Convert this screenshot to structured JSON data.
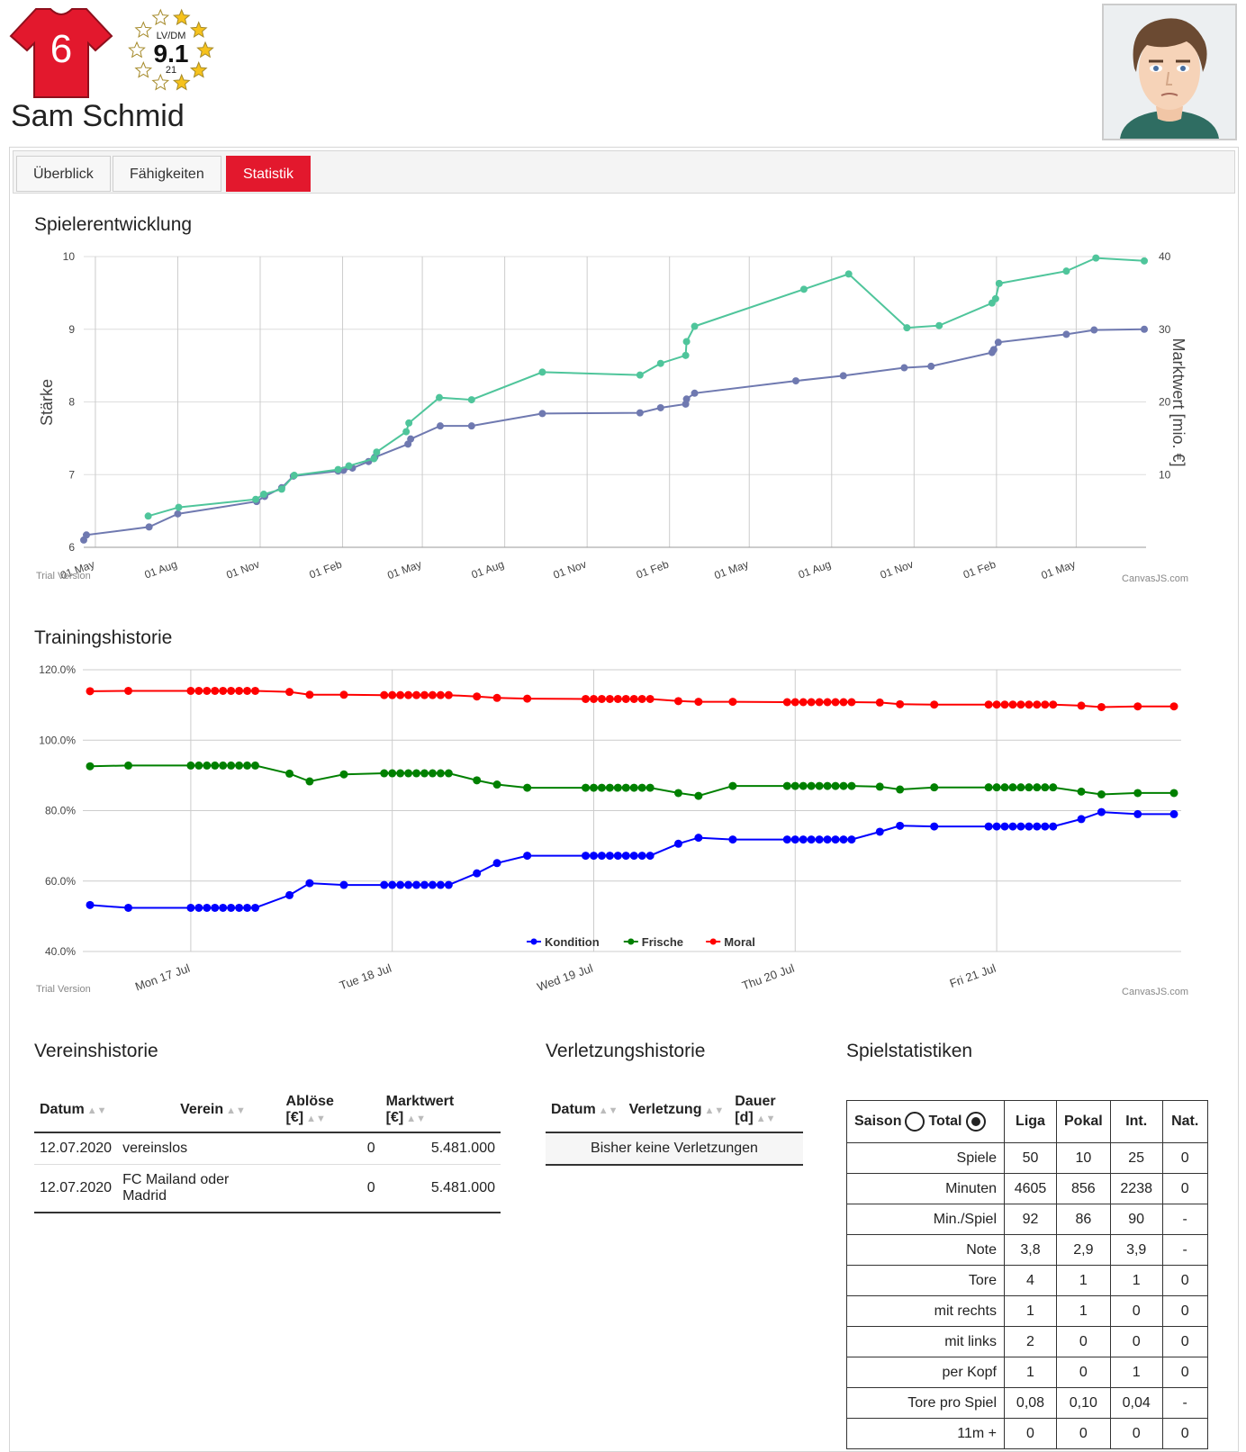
{
  "player": {
    "number": "6",
    "position": "LV/DM",
    "rating": "9.1",
    "age": "21",
    "stars_filled": 5,
    "stars_total": 10,
    "name": "Sam Schmid",
    "jersey_color": "#e3182d"
  },
  "tabs": [
    {
      "label": "Überblick",
      "active": false
    },
    {
      "label": "Fähigkeiten",
      "active": false
    },
    {
      "label": "Statistik",
      "active": true
    }
  ],
  "charts": {
    "development_title": "Spielerentwicklung",
    "training_title": "Trainingshistorie",
    "trial_label": "Trial Version",
    "credit_label": "CanvasJS.com"
  },
  "chart_data": [
    {
      "type": "line",
      "title": "Spielerentwicklung",
      "ylabel": "Stärke",
      "y2label": "Marktwert [mio. €]",
      "ylim": [
        6,
        10
      ],
      "y_ticks": [
        "6",
        "7",
        "8",
        "9",
        "10"
      ],
      "y2lim": [
        0,
        40
      ],
      "y2_ticks": [
        "10",
        "20",
        "30",
        "40"
      ],
      "xlim": [
        "2020-04-18",
        "2023-07-18"
      ],
      "x_ticks": [
        {
          "date": "2020-05-01",
          "label": "01 May"
        },
        {
          "date": "2020-08-01",
          "label": "01 Aug"
        },
        {
          "date": "2020-11-01",
          "label": "01 Nov"
        },
        {
          "date": "2021-02-01",
          "label": "01 Feb"
        },
        {
          "date": "2021-05-01",
          "label": "01 May"
        },
        {
          "date": "2021-08-01",
          "label": "01 Aug"
        },
        {
          "date": "2021-11-01",
          "label": "01 Nov"
        },
        {
          "date": "2022-02-01",
          "label": "01 Feb"
        },
        {
          "date": "2022-05-01",
          "label": "01 May"
        },
        {
          "date": "2022-08-01",
          "label": "01 Aug"
        },
        {
          "date": "2022-11-01",
          "label": "01 Nov"
        },
        {
          "date": "2023-02-01",
          "label": "01 Feb"
        },
        {
          "date": "2023-05-01",
          "label": "01 May"
        }
      ],
      "grid": true,
      "series": [
        {
          "axis": "left",
          "color": "#6f79b0",
          "points": [
            [
              "2020-04-18",
              6.1
            ],
            [
              "2020-04-21",
              6.17
            ],
            [
              "2020-06-30",
              6.28
            ],
            [
              "2020-08-01",
              6.46
            ],
            [
              "2020-10-28",
              6.63
            ],
            [
              "2020-11-06",
              6.7
            ],
            [
              "2020-11-25",
              6.82
            ],
            [
              "2020-12-08",
              6.98
            ],
            [
              "2021-01-27",
              7.05
            ],
            [
              "2021-02-02",
              7.06
            ],
            [
              "2021-02-12",
              7.09
            ],
            [
              "2021-03-02",
              7.18
            ],
            [
              "2021-03-09",
              7.24
            ],
            [
              "2021-04-15",
              7.42
            ],
            [
              "2021-04-18",
              7.49
            ],
            [
              "2021-05-21",
              7.67
            ],
            [
              "2021-06-25",
              7.67
            ],
            [
              "2021-09-12",
              7.84
            ],
            [
              "2021-12-30",
              7.85
            ],
            [
              "2022-01-22",
              7.92
            ],
            [
              "2022-02-19",
              7.97
            ],
            [
              "2022-02-20",
              8.04
            ],
            [
              "2022-03-01",
              8.12
            ],
            [
              "2022-06-22",
              8.29
            ],
            [
              "2022-08-14",
              8.36
            ],
            [
              "2022-10-21",
              8.47
            ],
            [
              "2022-11-20",
              8.49
            ],
            [
              "2023-01-27",
              8.68
            ],
            [
              "2023-01-29",
              8.72
            ],
            [
              "2023-02-03",
              8.82
            ],
            [
              "2023-04-20",
              8.93
            ],
            [
              "2023-05-21",
              8.99
            ],
            [
              "2023-07-16",
              9.0
            ]
          ]
        },
        {
          "axis": "right",
          "color": "#4fc59b",
          "points": [
            [
              "2020-06-29",
              4.3
            ],
            [
              "2020-08-02",
              5.5
            ],
            [
              "2020-10-27",
              6.6
            ],
            [
              "2020-11-05",
              7.3
            ],
            [
              "2020-11-25",
              8.0
            ],
            [
              "2020-12-09",
              9.9
            ],
            [
              "2021-01-27",
              10.7
            ],
            [
              "2021-02-08",
              11.2
            ],
            [
              "2021-03-08",
              12.2
            ],
            [
              "2021-03-11",
              13.1
            ],
            [
              "2021-04-13",
              15.9
            ],
            [
              "2021-04-16",
              17.1
            ],
            [
              "2021-05-20",
              20.6
            ],
            [
              "2021-06-25",
              20.3
            ],
            [
              "2021-09-12",
              24.1
            ],
            [
              "2021-12-30",
              23.7
            ],
            [
              "2022-01-22",
              25.3
            ],
            [
              "2022-02-19",
              26.4
            ],
            [
              "2022-02-20",
              28.3
            ],
            [
              "2022-03-01",
              30.4
            ],
            [
              "2022-07-01",
              35.5
            ],
            [
              "2022-08-20",
              37.6
            ],
            [
              "2022-10-24",
              30.2
            ],
            [
              "2022-11-29",
              30.5
            ],
            [
              "2023-01-27",
              33.6
            ],
            [
              "2023-01-31",
              34.2
            ],
            [
              "2023-02-04",
              36.3
            ],
            [
              "2023-04-20",
              38.0
            ],
            [
              "2023-05-23",
              39.8
            ],
            [
              "2023-07-16",
              39.4
            ]
          ]
        }
      ]
    },
    {
      "type": "line",
      "title": "Trainingshistorie",
      "ylim": [
        40,
        120
      ],
      "y_ticks": [
        "40.0%",
        "60.0%",
        "80.0%",
        "100.0%",
        "120.0%"
      ],
      "xlim": [
        -0.5,
        4.88
      ],
      "x_ticks": [
        {
          "x": 0,
          "label": "Mon 17 Jul"
        },
        {
          "x": 1,
          "label": "Tue 18 Jul"
        },
        {
          "x": 2,
          "label": "Wed 19 Jul"
        },
        {
          "x": 3,
          "label": "Thu 20 Jul"
        },
        {
          "x": 4,
          "label": "Fri 21 Jul"
        }
      ],
      "grid": true,
      "legend": "bottom",
      "x": [
        -0.5,
        -0.31,
        0,
        0.04,
        0.08,
        0.12,
        0.16,
        0.2,
        0.24,
        0.28,
        0.32,
        0.49,
        0.59,
        0.76,
        0.96,
        1.0,
        1.04,
        1.08,
        1.12,
        1.16,
        1.2,
        1.24,
        1.28,
        1.42,
        1.52,
        1.67,
        1.96,
        2.0,
        2.04,
        2.08,
        2.12,
        2.16,
        2.2,
        2.24,
        2.28,
        2.42,
        2.52,
        2.69,
        2.96,
        3.0,
        3.04,
        3.08,
        3.12,
        3.16,
        3.2,
        3.24,
        3.28,
        3.42,
        3.52,
        3.69,
        3.96,
        4.0,
        4.04,
        4.08,
        4.12,
        4.16,
        4.2,
        4.24,
        4.28,
        4.42,
        4.52,
        4.7,
        4.88
      ],
      "series": [
        {
          "name": "Kondition",
          "color": "#0000ff",
          "values": [
            53.2,
            52.4,
            52.4,
            52.4,
            52.4,
            52.4,
            52.4,
            52.4,
            52.4,
            52.4,
            52.4,
            56.0,
            59.4,
            58.9,
            58.9,
            58.9,
            58.9,
            58.9,
            58.9,
            58.9,
            58.9,
            58.9,
            58.9,
            62.2,
            65.1,
            67.2,
            67.2,
            67.2,
            67.2,
            67.2,
            67.2,
            67.2,
            67.2,
            67.2,
            67.2,
            70.6,
            72.3,
            71.8,
            71.8,
            71.8,
            71.8,
            71.8,
            71.8,
            71.8,
            71.8,
            71.8,
            71.8,
            74.0,
            75.7,
            75.5,
            75.5,
            75.5,
            75.5,
            75.5,
            75.5,
            75.5,
            75.5,
            75.5,
            75.5,
            77.6,
            79.6,
            79.0,
            79.0
          ]
        },
        {
          "name": "Frische",
          "color": "#008000",
          "values": [
            92.6,
            92.8,
            92.8,
            92.8,
            92.8,
            92.8,
            92.8,
            92.8,
            92.8,
            92.8,
            92.8,
            90.5,
            88.3,
            90.3,
            90.6,
            90.6,
            90.6,
            90.6,
            90.6,
            90.6,
            90.6,
            90.6,
            90.6,
            88.6,
            87.4,
            86.5,
            86.5,
            86.5,
            86.5,
            86.5,
            86.5,
            86.5,
            86.5,
            86.5,
            86.5,
            85.0,
            84.2,
            87.0,
            87.0,
            87.0,
            87.0,
            87.0,
            87.0,
            87.0,
            87.0,
            87.0,
            87.0,
            86.8,
            86.0,
            86.6,
            86.6,
            86.6,
            86.6,
            86.6,
            86.6,
            86.6,
            86.6,
            86.6,
            86.6,
            85.4,
            84.6,
            85.0,
            85.0
          ]
        },
        {
          "name": "Moral",
          "color": "#ff0000",
          "values": [
            113.9,
            114.0,
            114.0,
            114.0,
            114.0,
            114.0,
            114.0,
            114.0,
            114.0,
            114.0,
            114.0,
            113.7,
            112.9,
            112.9,
            112.8,
            112.8,
            112.8,
            112.8,
            112.8,
            112.8,
            112.8,
            112.8,
            112.8,
            112.4,
            112.0,
            111.8,
            111.7,
            111.7,
            111.7,
            111.7,
            111.7,
            111.7,
            111.7,
            111.7,
            111.7,
            111.1,
            110.9,
            110.9,
            110.8,
            110.8,
            110.8,
            110.8,
            110.8,
            110.8,
            110.8,
            110.8,
            110.8,
            110.7,
            110.2,
            110.1,
            110.1,
            110.1,
            110.1,
            110.1,
            110.1,
            110.1,
            110.1,
            110.1,
            110.1,
            109.8,
            109.4,
            109.6,
            109.6
          ]
        }
      ]
    }
  ],
  "club_history": {
    "title": "Vereinshistorie",
    "columns": [
      "Datum",
      "Verein",
      "Ablöse [€]",
      "Marktwert [€]"
    ],
    "rows": [
      [
        "12.07.2020",
        "vereinslos",
        "0",
        "5.481.000"
      ],
      [
        "12.07.2020",
        "FC Mailand oder Madrid",
        "0",
        "5.481.000"
      ]
    ]
  },
  "injury_history": {
    "title": "Verletzungshistorie",
    "columns": [
      "Datum",
      "Verletzung",
      "Dauer [d]"
    ],
    "empty_text": "Bisher keine Verletzungen"
  },
  "game_stats": {
    "title": "Spielstatistiken",
    "saison_label": "Saison",
    "total_label": "Total",
    "selected": "Total",
    "columns": [
      "Liga",
      "Pokal",
      "Int.",
      "Nat."
    ],
    "rows": [
      {
        "label": "Spiele",
        "values": [
          "50",
          "10",
          "25",
          "0"
        ]
      },
      {
        "label": "Minuten",
        "values": [
          "4605",
          "856",
          "2238",
          "0"
        ]
      },
      {
        "label": "Min./Spiel",
        "values": [
          "92",
          "86",
          "90",
          "-"
        ]
      },
      {
        "label": "Note",
        "values": [
          "3,8",
          "2,9",
          "3,9",
          "-"
        ]
      },
      {
        "label": "Tore",
        "values": [
          "4",
          "1",
          "1",
          "0"
        ]
      },
      {
        "label": "mit rechts",
        "values": [
          "1",
          "1",
          "0",
          "0"
        ]
      },
      {
        "label": "mit links",
        "values": [
          "2",
          "0",
          "0",
          "0"
        ]
      },
      {
        "label": "per Kopf",
        "values": [
          "1",
          "0",
          "1",
          "0"
        ]
      },
      {
        "label": "Tore pro Spiel",
        "values": [
          "0,08",
          "0,10",
          "0,04",
          "-"
        ]
      },
      {
        "label": "11m +",
        "values": [
          "0",
          "0",
          "0",
          "0"
        ]
      }
    ]
  }
}
